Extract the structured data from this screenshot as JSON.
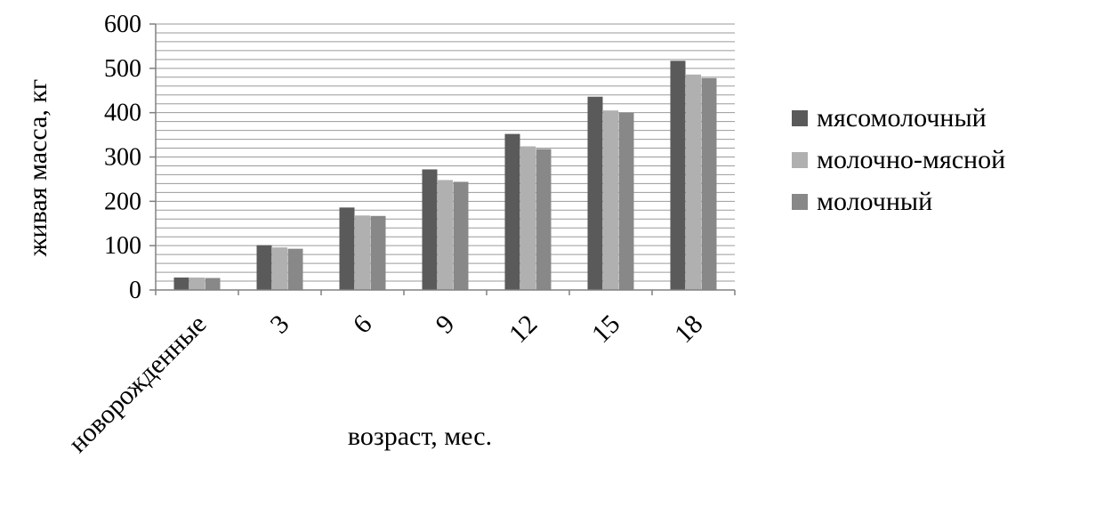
{
  "chart_data": {
    "type": "bar",
    "title": "",
    "xlabel": "возраст, мес.",
    "ylabel": "живая масса, кг",
    "categories": [
      "новорожденные",
      "3",
      "6",
      "9",
      "12",
      "15",
      "18"
    ],
    "series": [
      {
        "name": "мясомолочный",
        "color": "#5a5a5a",
        "values": [
          28,
          101,
          186,
          272,
          352,
          436,
          517
        ]
      },
      {
        "name": "молочно-мясной",
        "color": "#b0b0b0",
        "values": [
          28,
          96,
          168,
          248,
          324,
          405,
          486
        ]
      },
      {
        "name": "молочный",
        "color": "#888888",
        "values": [
          27,
          93,
          167,
          244,
          318,
          400,
          478
        ]
      }
    ],
    "ylim": [
      0,
      600
    ],
    "yticks": [
      0,
      100,
      200,
      300,
      400,
      500,
      600
    ],
    "grid": true,
    "grid_color": "#9a9a9a",
    "legend_position": "right"
  }
}
